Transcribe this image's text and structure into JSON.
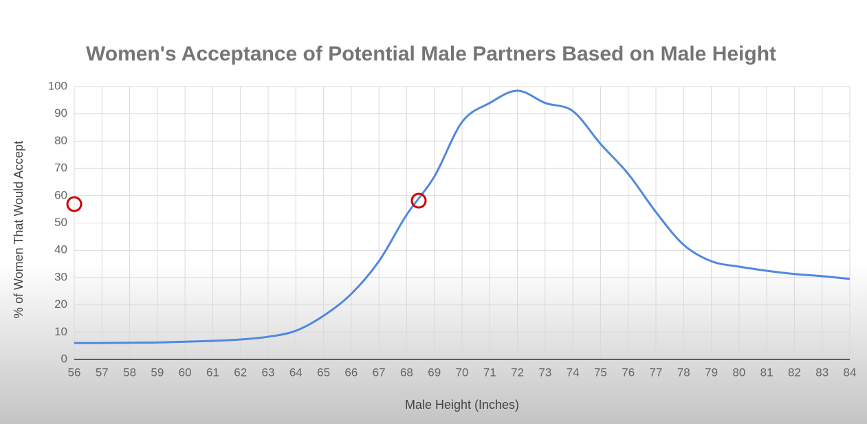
{
  "chart_data": {
    "type": "line",
    "title": "Women's Acceptance of Potential Male Partners Based on Male Height",
    "x_label": "Male Height (Inches)",
    "y_label": "% of Women That Would Accept",
    "x": [
      56,
      57,
      58,
      59,
      60,
      61,
      62,
      63,
      64,
      65,
      66,
      67,
      68,
      69,
      70,
      71,
      72,
      73,
      74,
      75,
      76,
      77,
      78,
      79,
      80,
      81,
      82,
      83,
      84
    ],
    "values": [
      6,
      6,
      6.1,
      6.2,
      6.5,
      6.8,
      7.3,
      8.3,
      10.5,
      16,
      24,
      36,
      53,
      67,
      87,
      94,
      98.5,
      94,
      91,
      79,
      68,
      54,
      42,
      36,
      34,
      32.5,
      31.3,
      30.5,
      29.5
    ],
    "color": "#5088e0",
    "xlim": [
      56,
      84
    ],
    "xticks": [
      56,
      57,
      58,
      59,
      60,
      61,
      62,
      63,
      64,
      65,
      66,
      67,
      68,
      69,
      70,
      71,
      72,
      73,
      74,
      75,
      76,
      77,
      78,
      79,
      80,
      81,
      82,
      83,
      84
    ],
    "ylim": [
      0,
      100
    ],
    "yticks": [
      0,
      10,
      20,
      30,
      40,
      50,
      60,
      70,
      80,
      90,
      100
    ],
    "grid": true
  }
}
